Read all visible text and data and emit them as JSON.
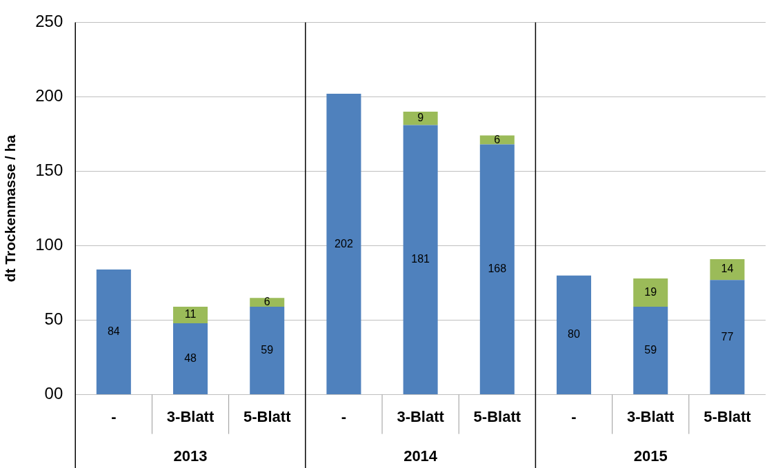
{
  "chart_data": {
    "type": "bar",
    "ylabel": "dt Trockenmasse / ha",
    "categories": [
      "-",
      "3-Blatt",
      "5-Blatt",
      "-",
      "3-Blatt",
      "5-Blatt",
      "-",
      "3-Blatt",
      "5-Blatt"
    ],
    "series": [
      {
        "color": "#4f81bd",
        "values": [
          84,
          48,
          59,
          202,
          181,
          168,
          80,
          59,
          77
        ]
      },
      {
        "color": "#9bbb59",
        "values": [
          null,
          11,
          6,
          null,
          9,
          6,
          null,
          19,
          14
        ]
      }
    ],
    "stacked": true,
    "data_labels": true,
    "grid": "y",
    "legend": false,
    "ylim": [
      0,
      250
    ],
    "yticks": [
      {
        "value": 0,
        "label": "00"
      },
      50,
      100,
      150,
      200,
      250
    ],
    "annotations": [
      "2013",
      "2014",
      "2015"
    ]
  }
}
